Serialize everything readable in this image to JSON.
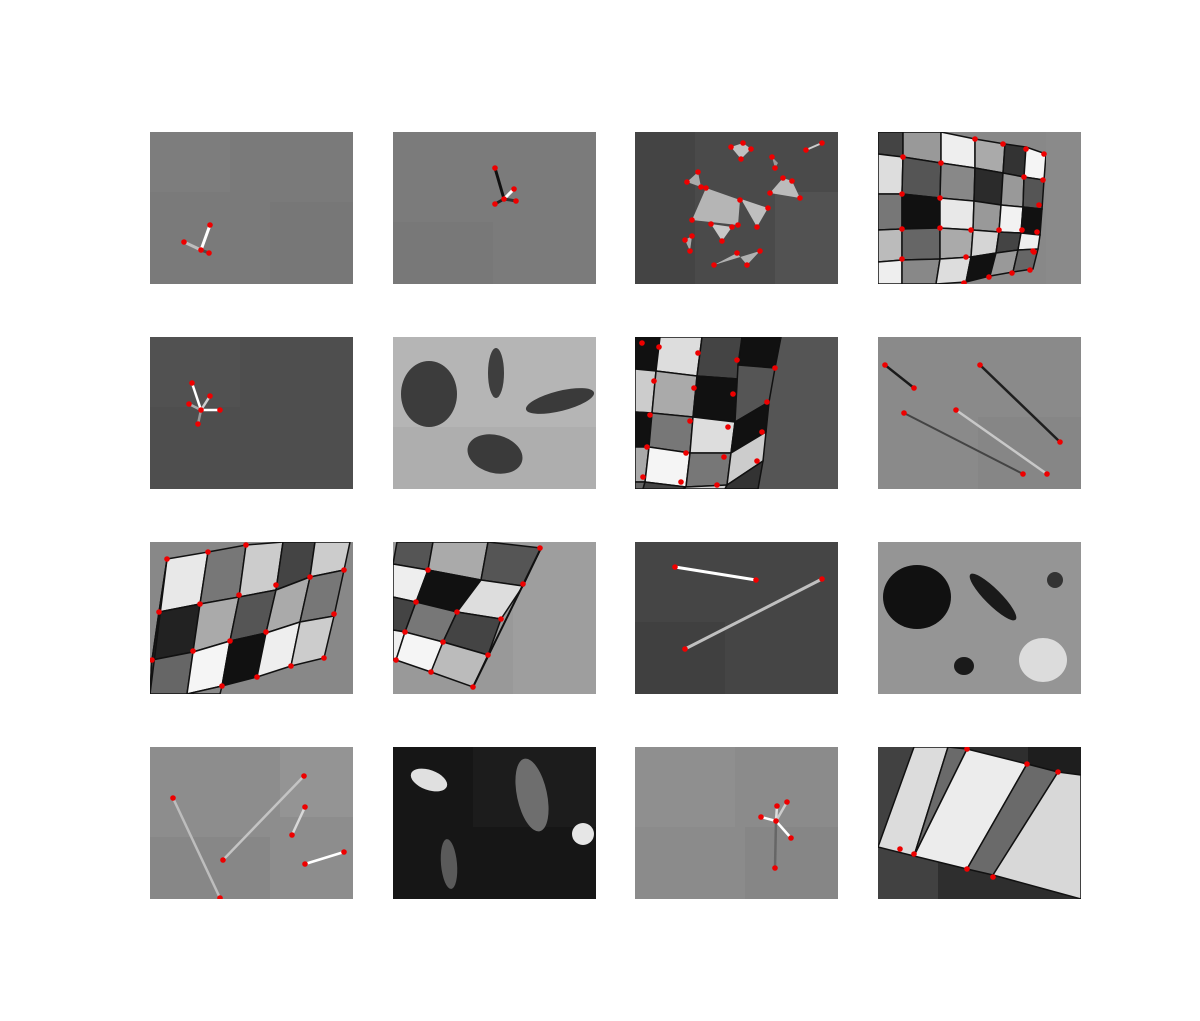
{
  "figure": {
    "layout": {
      "rows": 4,
      "columns": 4
    },
    "background_color": "#ffffff",
    "keypoint_color": "#ee0000",
    "panels": [
      {
        "id": "p1",
        "content": "star-lines"
      },
      {
        "id": "p2",
        "content": "star-lines"
      },
      {
        "id": "p3",
        "content": "polygons"
      },
      {
        "id": "p4",
        "content": "checkerboard"
      },
      {
        "id": "p5",
        "content": "star-lines"
      },
      {
        "id": "p6",
        "content": "ellipses"
      },
      {
        "id": "p7",
        "content": "checkerboard"
      },
      {
        "id": "p8",
        "content": "lines"
      },
      {
        "id": "p9",
        "content": "checkerboard"
      },
      {
        "id": "p10",
        "content": "checkerboard"
      },
      {
        "id": "p11",
        "content": "lines"
      },
      {
        "id": "p12",
        "content": "ellipses"
      },
      {
        "id": "p13",
        "content": "lines"
      },
      {
        "id": "p14",
        "content": "ellipses"
      },
      {
        "id": "p15",
        "content": "star-lines"
      },
      {
        "id": "p16",
        "content": "stripes"
      }
    ]
  }
}
